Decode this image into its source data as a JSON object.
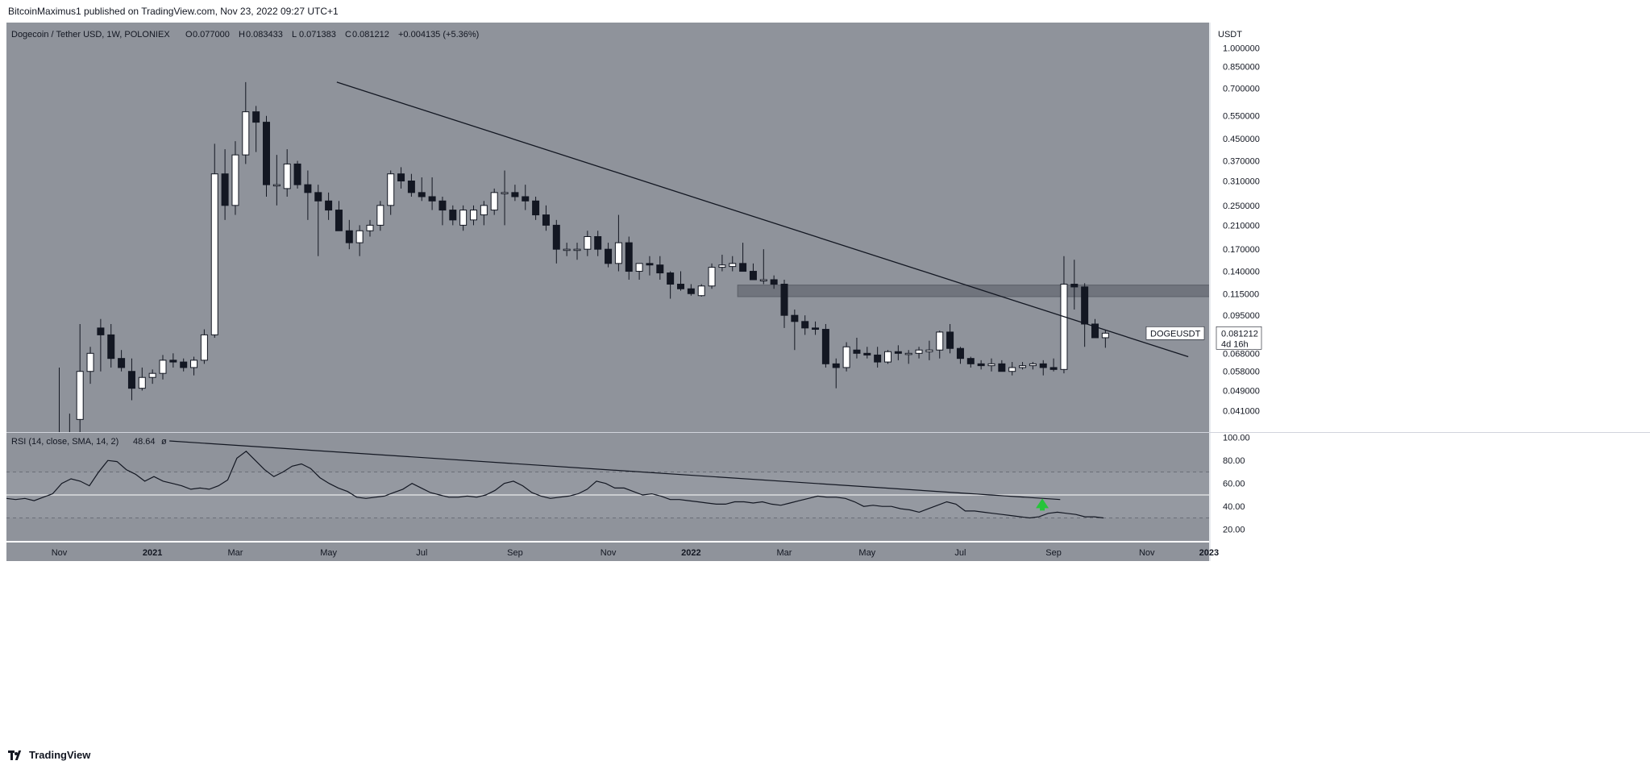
{
  "publish_line": "BitcoinMaximus1 published on TradingView.com, Nov 23, 2022 09:27 UTC+1",
  "footer_brand": "TradingView",
  "colors": {
    "pane_bg": "#8f939b",
    "axis_bg": "#ffffff",
    "up_candle": "#ffffff",
    "down_candle": "#131722",
    "trendline": "#131722",
    "zone": "#6b6f78",
    "rsi_line": "#131722",
    "arrow": "#26c43a"
  },
  "chart_data": [
    {
      "type": "candlestick",
      "symbol_title": "Dogecoin / Tether USD, 1W, POLONIEX",
      "ohlc_header": {
        "o_label": "O",
        "o_value": "0.077000",
        "h_label": "H",
        "h_value": "0.083433",
        "l_label": "L",
        "l_value": "0.071383",
        "c_label": "C",
        "c_value": "0.081212",
        "change": "+0.004135 (+5.36%)"
      },
      "y_unit": "USDT",
      "y_scale": "log",
      "ylim": [
        0.034,
        1.25
      ],
      "y_ticks": [
        "1.000000",
        "0.850000",
        "0.700000",
        "0.550000",
        "0.450000",
        "0.370000",
        "0.310000",
        "0.250000",
        "0.210000",
        "0.170000",
        "0.140000",
        "0.115000",
        "0.095000",
        "0.080000",
        "0.068000",
        "0.058000",
        "0.049000",
        "0.041000"
      ],
      "price_label": {
        "symbol": "DOGEUSDT",
        "value": "0.081212",
        "countdown": "4d 16h"
      },
      "candles": [
        [
          0.012,
          0.06,
          0.005,
          0.01
        ],
        [
          0.01,
          0.04,
          0.008,
          0.009
        ],
        [
          0.038,
          0.088,
          0.03,
          0.058
        ],
        [
          0.058,
          0.072,
          0.052,
          0.068
        ],
        [
          0.085,
          0.092,
          0.058,
          0.08
        ],
        [
          0.08,
          0.088,
          0.06,
          0.065
        ],
        [
          0.065,
          0.07,
          0.058,
          0.06
        ],
        [
          0.058,
          0.065,
          0.045,
          0.05
        ],
        [
          0.05,
          0.06,
          0.049,
          0.055
        ],
        [
          0.055,
          0.059,
          0.052,
          0.057
        ],
        [
          0.057,
          0.067,
          0.054,
          0.064
        ],
        [
          0.064,
          0.068,
          0.06,
          0.063
        ],
        [
          0.063,
          0.065,
          0.058,
          0.06
        ],
        [
          0.06,
          0.066,
          0.056,
          0.064
        ],
        [
          0.064,
          0.084,
          0.062,
          0.08
        ],
        [
          0.08,
          0.43,
          0.078,
          0.33
        ],
        [
          0.33,
          0.41,
          0.22,
          0.25
        ],
        [
          0.25,
          0.44,
          0.23,
          0.39
        ],
        [
          0.39,
          0.74,
          0.36,
          0.57
        ],
        [
          0.57,
          0.6,
          0.4,
          0.52
        ],
        [
          0.52,
          0.55,
          0.27,
          0.3
        ],
        [
          0.3,
          0.39,
          0.25,
          0.3
        ],
        [
          0.29,
          0.41,
          0.27,
          0.36
        ],
        [
          0.36,
          0.37,
          0.29,
          0.3
        ],
        [
          0.3,
          0.34,
          0.22,
          0.28
        ],
        [
          0.28,
          0.3,
          0.16,
          0.26
        ],
        [
          0.26,
          0.28,
          0.22,
          0.24
        ],
        [
          0.24,
          0.26,
          0.2,
          0.2
        ],
        [
          0.2,
          0.22,
          0.17,
          0.18
        ],
        [
          0.18,
          0.21,
          0.16,
          0.2
        ],
        [
          0.2,
          0.22,
          0.19,
          0.21
        ],
        [
          0.21,
          0.26,
          0.2,
          0.25
        ],
        [
          0.25,
          0.34,
          0.23,
          0.33
        ],
        [
          0.33,
          0.35,
          0.29,
          0.31
        ],
        [
          0.31,
          0.33,
          0.27,
          0.28
        ],
        [
          0.28,
          0.32,
          0.26,
          0.27
        ],
        [
          0.27,
          0.32,
          0.24,
          0.26
        ],
        [
          0.26,
          0.27,
          0.21,
          0.24
        ],
        [
          0.24,
          0.25,
          0.21,
          0.22
        ],
        [
          0.21,
          0.25,
          0.2,
          0.24
        ],
        [
          0.22,
          0.25,
          0.21,
          0.24
        ],
        [
          0.23,
          0.26,
          0.21,
          0.25
        ],
        [
          0.24,
          0.29,
          0.23,
          0.28
        ],
        [
          0.28,
          0.34,
          0.21,
          0.28
        ],
        [
          0.28,
          0.3,
          0.26,
          0.27
        ],
        [
          0.27,
          0.3,
          0.24,
          0.26
        ],
        [
          0.26,
          0.27,
          0.22,
          0.23
        ],
        [
          0.23,
          0.25,
          0.2,
          0.21
        ],
        [
          0.21,
          0.22,
          0.15,
          0.17
        ],
        [
          0.17,
          0.18,
          0.16,
          0.17
        ],
        [
          0.17,
          0.18,
          0.155,
          0.17
        ],
        [
          0.17,
          0.2,
          0.16,
          0.19
        ],
        [
          0.19,
          0.2,
          0.16,
          0.17
        ],
        [
          0.17,
          0.18,
          0.145,
          0.15
        ],
        [
          0.15,
          0.23,
          0.14,
          0.18
        ],
        [
          0.18,
          0.19,
          0.13,
          0.14
        ],
        [
          0.14,
          0.15,
          0.13,
          0.15
        ],
        [
          0.15,
          0.16,
          0.135,
          0.148
        ],
        [
          0.148,
          0.16,
          0.13,
          0.138
        ],
        [
          0.138,
          0.14,
          0.11,
          0.125
        ],
        [
          0.125,
          0.14,
          0.118,
          0.12
        ],
        [
          0.12,
          0.125,
          0.113,
          0.115
        ],
        [
          0.113,
          0.125,
          0.112,
          0.123
        ],
        [
          0.123,
          0.15,
          0.12,
          0.145
        ],
        [
          0.145,
          0.162,
          0.14,
          0.148
        ],
        [
          0.146,
          0.16,
          0.14,
          0.15
        ],
        [
          0.15,
          0.18,
          0.14,
          0.14
        ],
        [
          0.14,
          0.15,
          0.13,
          0.13
        ],
        [
          0.13,
          0.17,
          0.125,
          0.13
        ],
        [
          0.13,
          0.135,
          0.12,
          0.125
        ],
        [
          0.125,
          0.13,
          0.085,
          0.095
        ],
        [
          0.095,
          0.1,
          0.07,
          0.09
        ],
        [
          0.09,
          0.095,
          0.08,
          0.085
        ],
        [
          0.085,
          0.09,
          0.08,
          0.084
        ],
        [
          0.084,
          0.088,
          0.06,
          0.062
        ],
        [
          0.062,
          0.065,
          0.05,
          0.06
        ],
        [
          0.06,
          0.075,
          0.058,
          0.072
        ],
        [
          0.07,
          0.078,
          0.065,
          0.068
        ],
        [
          0.068,
          0.072,
          0.065,
          0.067
        ],
        [
          0.067,
          0.072,
          0.06,
          0.063
        ],
        [
          0.063,
          0.07,
          0.062,
          0.069
        ],
        [
          0.069,
          0.073,
          0.064,
          0.068
        ],
        [
          0.068,
          0.07,
          0.062,
          0.068
        ],
        [
          0.068,
          0.072,
          0.065,
          0.07
        ],
        [
          0.069,
          0.076,
          0.064,
          0.07
        ],
        [
          0.07,
          0.083,
          0.065,
          0.082
        ],
        [
          0.082,
          0.088,
          0.068,
          0.071
        ],
        [
          0.071,
          0.072,
          0.062,
          0.065
        ],
        [
          0.065,
          0.066,
          0.06,
          0.062
        ],
        [
          0.062,
          0.064,
          0.059,
          0.061
        ],
        [
          0.061,
          0.065,
          0.058,
          0.062
        ],
        [
          0.062,
          0.064,
          0.058,
          0.058
        ],
        [
          0.058,
          0.063,
          0.056,
          0.06
        ],
        [
          0.06,
          0.063,
          0.059,
          0.061
        ],
        [
          0.061,
          0.063,
          0.059,
          0.062
        ],
        [
          0.062,
          0.064,
          0.056,
          0.06
        ],
        [
          0.06,
          0.065,
          0.058,
          0.059
        ],
        [
          0.059,
          0.16,
          0.057,
          0.125
        ],
        [
          0.125,
          0.155,
          0.1,
          0.122
        ],
        [
          0.122,
          0.126,
          0.072,
          0.088
        ],
        [
          0.088,
          0.092,
          0.078,
          0.078
        ],
        [
          0.078,
          0.0834,
          0.0714,
          0.0812
        ]
      ],
      "x_ticks": [
        {
          "label": "Nov",
          "bar": 0,
          "bold": false
        },
        {
          "label": "2021",
          "bar": 9,
          "bold": true
        },
        {
          "label": "Mar",
          "bar": 17,
          "bold": false
        },
        {
          "label": "May",
          "bar": 26,
          "bold": false
        },
        {
          "label": "Jul",
          "bar": 35,
          "bold": false
        },
        {
          "label": "Sep",
          "bar": 44,
          "bold": false
        },
        {
          "label": "Nov",
          "bar": 53,
          "bold": false
        },
        {
          "label": "2022",
          "bar": 61,
          "bold": true
        },
        {
          "label": "Mar",
          "bar": 70,
          "bold": false
        },
        {
          "label": "May",
          "bar": 78,
          "bold": false
        },
        {
          "label": "Jul",
          "bar": 87,
          "bold": false
        },
        {
          "label": "Sep",
          "bar": 96,
          "bold": false
        },
        {
          "label": "Nov",
          "bar": 105,
          "bold": false
        },
        {
          "label": "2023",
          "bar": 111,
          "bold": true
        }
      ],
      "trendline": {
        "from": {
          "bar": 26.8,
          "price": 0.74
        },
        "to": {
          "bar": 109,
          "price": 0.066
        }
      },
      "resistance_zone": {
        "from_bar": 65.5,
        "to_bar": 117.5,
        "low": 0.112,
        "high": 0.124
      }
    },
    {
      "type": "line",
      "indicator_label": "RSI (14, close, SMA, 14, 2)",
      "indicator_value": "48.64",
      "indicator_extra": "ø",
      "ylim": [
        10,
        104
      ],
      "y_ticks": [
        "100.00",
        "80.00",
        "60.00",
        "40.00",
        "20.00"
      ],
      "bands": {
        "upper": 70,
        "middle": 50,
        "lower": 30
      },
      "rsi": [
        47,
        46,
        47,
        45,
        48,
        51,
        60,
        64,
        62,
        58,
        70,
        80,
        79,
        72,
        68,
        62,
        66,
        62,
        60,
        58,
        55,
        56,
        55,
        58,
        63,
        82,
        88,
        80,
        72,
        66,
        70,
        75,
        77,
        73,
        65,
        60,
        56,
        53,
        48,
        47,
        48,
        49,
        52,
        55,
        60,
        56,
        52,
        50,
        48,
        48,
        49,
        48,
        50,
        54,
        60,
        62,
        58,
        52,
        49,
        47,
        48,
        49,
        51,
        55,
        62,
        60,
        56,
        56,
        53,
        50,
        51,
        49,
        46,
        46,
        45,
        44,
        43,
        42,
        42,
        44,
        44,
        43,
        44,
        42,
        41,
        43,
        45,
        47,
        49,
        48,
        48,
        47,
        44,
        40,
        41,
        40,
        40,
        38,
        37,
        35,
        38,
        41,
        44,
        42,
        36,
        36,
        35,
        34,
        33,
        32,
        31,
        30,
        31,
        34,
        35,
        34,
        33,
        31,
        31,
        30
      ],
      "trendline": {
        "from": {
          "x": 0.1355,
          "y": 97
        },
        "to": {
          "x": 0.8762,
          "y": 46
        }
      },
      "marker": {
        "shape": "up-arrow",
        "x": 0.8613,
        "y": 42
      }
    }
  ]
}
